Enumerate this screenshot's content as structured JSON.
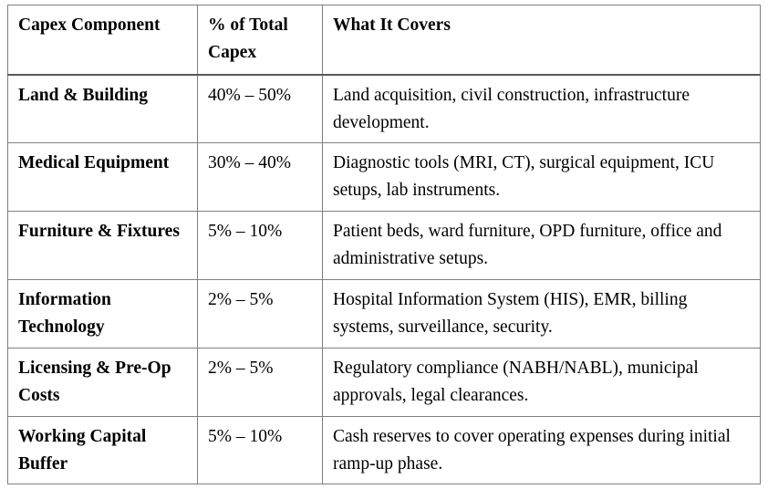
{
  "table": {
    "columns": [
      "Capex Component",
      "% of Total Capex",
      "What It Covers"
    ],
    "rows": [
      {
        "component": "Land & Building",
        "pct_of_total": "40% – 50%",
        "covers": "Land acquisition, civil construction, infrastructure development."
      },
      {
        "component": "Medical Equipment",
        "pct_of_total": "30% – 40%",
        "covers": "Diagnostic tools (MRI, CT), surgical equipment, ICU setups, lab instruments."
      },
      {
        "component": "Furniture & Fixtures",
        "pct_of_total": "5% – 10%",
        "covers": "Patient beds, ward furniture, OPD furniture, office and administrative setups."
      },
      {
        "component": "Information Technology",
        "pct_of_total": "2% – 5%",
        "covers": "Hospital Information System (HIS), EMR, billing systems, surveillance, security."
      },
      {
        "component": "Licensing & Pre-Op Costs",
        "pct_of_total": "2% – 5%",
        "covers": "Regulatory compliance (NABH/NABL), municipal approvals, legal clearances."
      },
      {
        "component": "Working Capital Buffer",
        "pct_of_total": "5% – 10%",
        "covers": "Cash reserves to cover operating expenses during initial ramp-up phase."
      }
    ],
    "colors": {
      "border": "#808080",
      "header_rule": "#5a5a5a",
      "text": "#000000",
      "background": "#ffffff"
    }
  }
}
